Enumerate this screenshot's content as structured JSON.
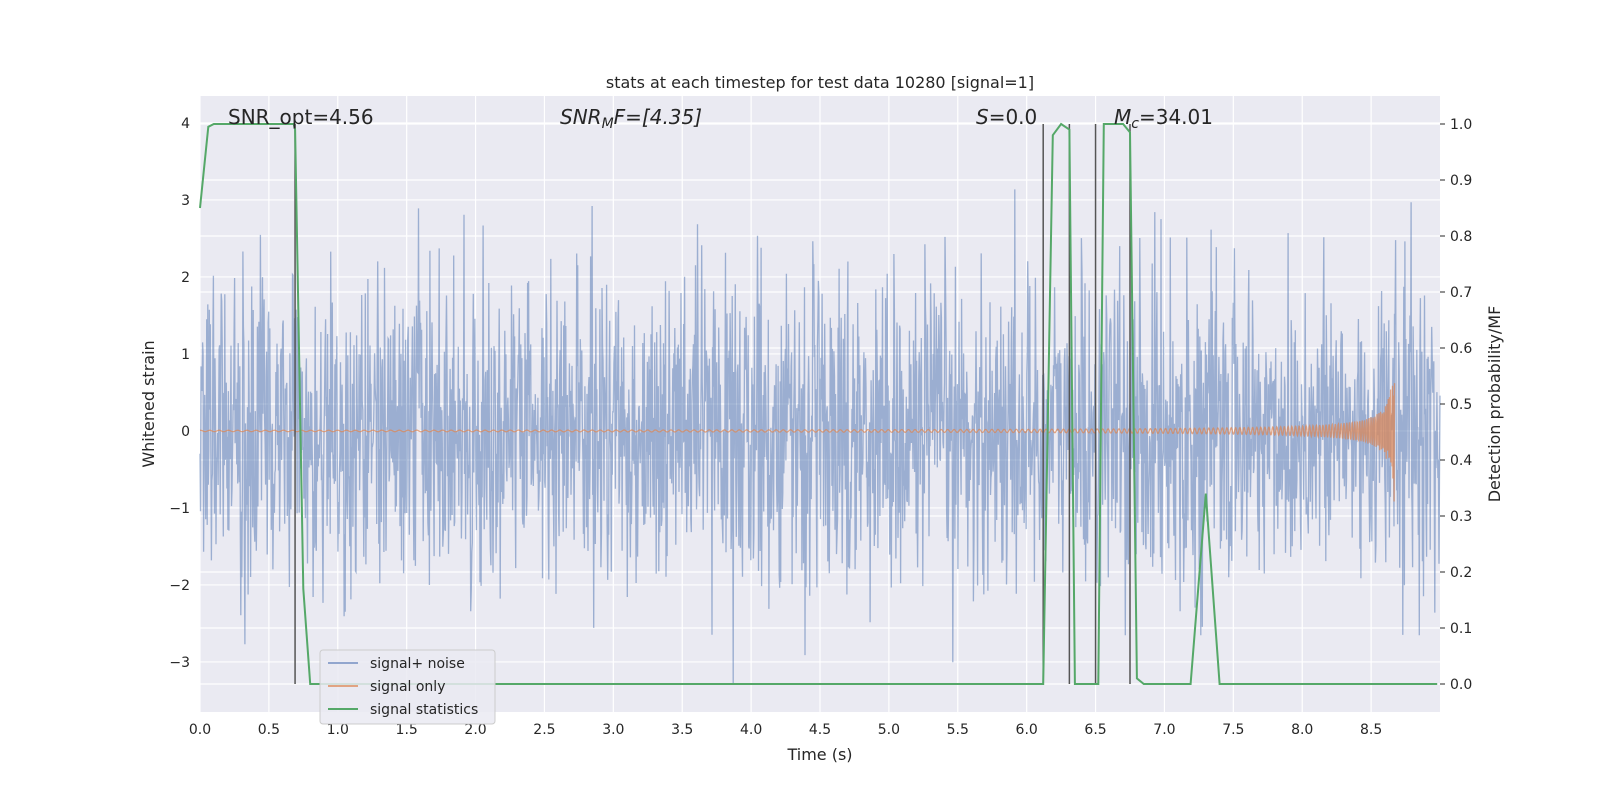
{
  "chart_data": {
    "type": "line",
    "title": "stats at each timestep for test data 10280 [signal=1]",
    "xlabel": "Time (s)",
    "ylabel": "Whitened strain",
    "y2label": "Detection probability/MF",
    "xlim": [
      0.0,
      9.0
    ],
    "ylim": [
      -3.65,
      4.35
    ],
    "y2lim": [
      -0.05,
      1.05
    ],
    "grid": true,
    "legend_position": "lower-left",
    "x_ticks": [
      "0.0",
      "0.5",
      "1.0",
      "1.5",
      "2.0",
      "2.5",
      "3.0",
      "3.5",
      "4.0",
      "4.5",
      "5.0",
      "5.5",
      "6.0",
      "6.5",
      "7.0",
      "7.5",
      "8.0",
      "8.5"
    ],
    "y_ticks": [
      "4",
      "3",
      "2",
      "1",
      "0",
      "−1",
      "−2",
      "−3"
    ],
    "y2_ticks": [
      "1.0",
      "0.9",
      "0.8",
      "0.7",
      "0.6",
      "0.5",
      "0.4",
      "0.3",
      "0.2",
      "0.1",
      "0.0"
    ],
    "annotations": {
      "snr_opt": "SNR_opt=4.56",
      "snr_mf_main": "SNR",
      "snr_mf_sub": "M",
      "snr_mf_rest": "F=[4.35]",
      "s_main": "S",
      "s_rest": "=0.0",
      "mc_main": "M",
      "mc_sub": "c",
      "mc_rest": "=34.01"
    },
    "vertical_markers_x": [
      0.69,
      6.12,
      6.31,
      6.5,
      6.75
    ],
    "series": [
      {
        "name": "signal+ noise",
        "color": "#4c72b0",
        "description_values": "Gaussian-like whitened noise, approx. std 1.0, peaks to about ±3.3",
        "amplitude_std": 1.0,
        "x_range": [
          0.0,
          9.0
        ]
      },
      {
        "name": "signal only",
        "color": "#dd8452",
        "chirp_end_x": 8.67,
        "chirp_peak_amplitude": 1.1
      },
      {
        "name": "signal statistics",
        "color": "#55a868",
        "axis": "right",
        "x": [
          0.0,
          0.06,
          0.1,
          0.2,
          0.5,
          0.68,
          0.69,
          0.75,
          0.8,
          0.85,
          1.0,
          2.0,
          3.0,
          4.0,
          5.0,
          6.0,
          6.12,
          6.19,
          6.25,
          6.31,
          6.35,
          6.45,
          6.5,
          6.52,
          6.56,
          6.62,
          6.7,
          6.75,
          6.8,
          6.85,
          7.0,
          7.19,
          7.3,
          7.4,
          7.45,
          8.0,
          8.5,
          8.98
        ],
        "values": [
          0.85,
          0.995,
          1.0,
          1.0,
          1.0,
          1.0,
          0.99,
          0.17,
          0.0,
          0.0,
          0.0,
          0.0,
          0.0,
          0.0,
          0.0,
          0.0,
          0.0,
          0.98,
          1.0,
          0.99,
          0.0,
          0.0,
          0.0,
          0.0,
          1.0,
          1.0,
          1.0,
          0.985,
          0.01,
          0.0,
          0.0,
          0.0,
          0.34,
          0.0,
          0.0,
          0.0,
          0.0,
          0.0
        ]
      }
    ]
  }
}
